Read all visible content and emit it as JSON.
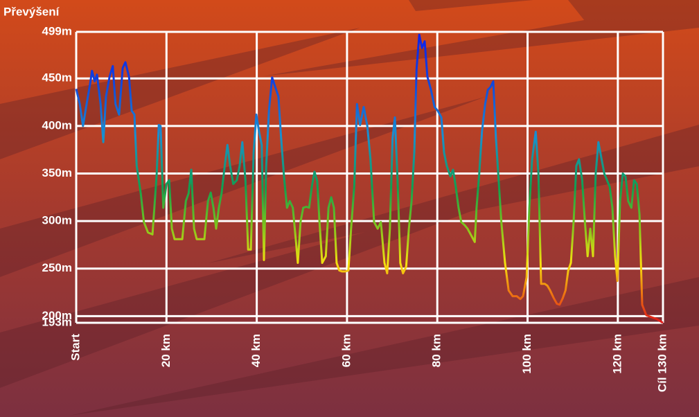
{
  "chart_data": {
    "type": "line",
    "y_axis_label": "Převýšení",
    "x": [
      0,
      0.8,
      1.5,
      2.3,
      3.1,
      3.5,
      4.1,
      4.6,
      5.4,
      6.0,
      6.6,
      7.4,
      8.1,
      8.7,
      9.5,
      10.3,
      10.9,
      11.7,
      12.3,
      12.9,
      13.4,
      14.3,
      15.0,
      15.9,
      16.9,
      17.8,
      18.3,
      18.7,
      19.3,
      20.0,
      20.6,
      21.2,
      21.8,
      22.7,
      23.5,
      24.3,
      24.9,
      25.5,
      26.1,
      26.7,
      27.6,
      28.4,
      29.2,
      29.8,
      30.4,
      31.0,
      31.6,
      32.2,
      32.9,
      33.5,
      34.1,
      34.8,
      35.6,
      36.2,
      36.8,
      37.5,
      38.1,
      38.7,
      39.3,
      39.9,
      40.5,
      41.1,
      41.6,
      42.1,
      42.7,
      43.4,
      44.1,
      44.8,
      45.4,
      46.1,
      46.7,
      47.3,
      48.0,
      48.7,
      49.1,
      49.7,
      50.3,
      51.0,
      51.6,
      52.2,
      52.8,
      53.4,
      53.9,
      54.5,
      55.3,
      55.9,
      56.5,
      57.1,
      57.7,
      58.3,
      58.9,
      59.6,
      60.3,
      60.9,
      61.6,
      62.2,
      62.9,
      63.7,
      64.5,
      65.2,
      66.0,
      66.8,
      67.5,
      68.3,
      68.9,
      69.5,
      70.1,
      70.6,
      71.2,
      71.8,
      72.4,
      73.1,
      73.7,
      74.3,
      74.9,
      75.4,
      76.0,
      76.6,
      77.2,
      77.8,
      78.6,
      79.4,
      80.1,
      80.9,
      81.5,
      82.1,
      82.9,
      83.5,
      84.1,
      84.7,
      85.3,
      86.0,
      86.7,
      87.5,
      88.3,
      88.7,
      89.3,
      89.9,
      90.6,
      91.2,
      91.8,
      92.4,
      93.0,
      93.6,
      94.2,
      95.0,
      95.8,
      96.7,
      97.6,
      98.4,
      99.0,
      99.8,
      100.4,
      101.0,
      101.8,
      102.4,
      103.0,
      103.8,
      104.4,
      105.0,
      105.8,
      106.5,
      107.1,
      107.8,
      108.4,
      109.0,
      109.6,
      110.2,
      110.8,
      111.4,
      112.1,
      112.7,
      113.3,
      113.9,
      114.5,
      115.1,
      115.7,
      116.4,
      117.0,
      117.6,
      118.2,
      118.8,
      119.4,
      119.9,
      120.5,
      121.1,
      121.7,
      122.3,
      123.0,
      123.6,
      124.2,
      124.8,
      125.4,
      126.3,
      127.4,
      128.6,
      130.0
    ],
    "values": [
      439,
      423,
      400,
      423,
      445,
      458,
      447,
      454,
      423,
      383,
      431,
      452,
      463,
      423,
      412,
      461,
      467,
      452,
      416,
      412,
      358,
      329,
      299,
      288,
      286,
      347,
      401,
      400,
      314,
      339,
      343,
      292,
      281,
      281,
      281,
      321,
      329,
      354,
      292,
      281,
      281,
      281,
      321,
      330,
      314,
      292,
      314,
      329,
      358,
      380,
      358,
      339,
      343,
      358,
      383,
      343,
      270,
      270,
      372,
      412,
      394,
      380,
      259,
      358,
      416,
      451,
      441,
      431,
      387,
      343,
      314,
      321,
      314,
      278,
      256,
      299,
      314,
      315,
      314,
      336,
      352,
      342,
      299,
      256,
      263,
      314,
      325,
      314,
      256,
      248,
      247,
      247,
      248,
      292,
      336,
      423,
      401,
      420,
      400,
      365,
      299,
      292,
      299,
      256,
      245,
      292,
      387,
      409,
      343,
      256,
      245,
      252,
      292,
      321,
      372,
      460,
      496,
      482,
      489,
      452,
      438,
      420,
      416,
      409,
      372,
      358,
      347,
      354,
      336,
      314,
      299,
      296,
      292,
      285,
      278,
      314,
      350,
      394,
      423,
      438,
      441,
      447,
      387,
      343,
      299,
      256,
      227,
      221,
      221,
      218,
      221,
      241,
      314,
      365,
      394,
      350,
      234,
      234,
      232,
      227,
      219,
      213,
      212,
      219,
      227,
      248,
      256,
      299,
      358,
      365,
      343,
      299,
      263,
      292,
      263,
      350,
      383,
      365,
      350,
      343,
      336,
      314,
      263,
      237,
      321,
      350,
      347,
      321,
      314,
      343,
      339,
      307,
      212,
      201,
      199,
      197,
      193
    ],
    "line_colors": [
      {
        "value": 193,
        "color": "#e01818"
      },
      {
        "value": 230,
        "color": "#f08a10"
      },
      {
        "value": 255,
        "color": "#f5e010"
      },
      {
        "value": 300,
        "color": "#70c020"
      },
      {
        "value": 335,
        "color": "#10a050"
      },
      {
        "value": 390,
        "color": "#1890d0"
      },
      {
        "value": 450,
        "color": "#1040e0"
      },
      {
        "value": 499,
        "color": "#1020e8"
      }
    ],
    "xlim": [
      0,
      130
    ],
    "xticks": [
      {
        "value": 0,
        "label": "Start"
      },
      {
        "value": 20,
        "label": "20 km"
      },
      {
        "value": 40,
        "label": "40 km"
      },
      {
        "value": 60,
        "label": "60 km"
      },
      {
        "value": 80,
        "label": "80 km"
      },
      {
        "value": 100,
        "label": "100 km"
      },
      {
        "value": 120,
        "label": "120 km"
      },
      {
        "value": 130,
        "label": "Cíl 130 km"
      }
    ],
    "ylim": [
      193,
      499
    ],
    "yticks": [
      {
        "value": 193,
        "label": "193m"
      },
      {
        "value": 200,
        "label": "200m"
      },
      {
        "value": 250,
        "label": "250m"
      },
      {
        "value": 300,
        "label": "300m"
      },
      {
        "value": 350,
        "label": "350m"
      },
      {
        "value": 400,
        "label": "400m"
      },
      {
        "value": 450,
        "label": "450m"
      },
      {
        "value": 499,
        "label": "499m"
      }
    ],
    "grid": true
  }
}
